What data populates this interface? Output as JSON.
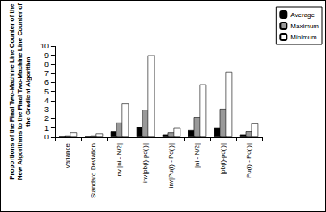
{
  "chart_data": {
    "type": "bar",
    "y_label": "Proportions of the Final Two-Machine Line Counter of the\nNew Algorithms to the Final Two-Machine Line Counter of\nthe Gradient Algorithm",
    "categories": [
      "Variance",
      "Standard Deviation",
      "inv |ni - N/2|",
      "inv|pb(i)-pd(i)|",
      "inv|Pu(i) - Pd(i)|",
      "|ni - N/2|",
      "|pb(i)-pd(i)|",
      "Pu(i) - Pd(i)|"
    ],
    "series": [
      {
        "name": "Average",
        "color": "#000000",
        "values": [
          0.05,
          0.05,
          0.6,
          1.1,
          0.3,
          0.8,
          1.0,
          0.3
        ]
      },
      {
        "name": "Maximum",
        "color": "#999999",
        "values": [
          0.1,
          0.1,
          1.6,
          3.0,
          0.5,
          2.2,
          3.1,
          0.6
        ]
      },
      {
        "name": "Minimum",
        "color": "#ffffff",
        "values": [
          0.5,
          0.4,
          3.7,
          9.0,
          1.0,
          5.8,
          7.2,
          1.5
        ]
      }
    ],
    "ylim": [
      0,
      10
    ],
    "yticks": [
      0,
      1,
      2,
      3,
      4,
      5,
      6,
      7,
      8,
      9,
      10
    ],
    "grid": false,
    "legend": "right"
  }
}
